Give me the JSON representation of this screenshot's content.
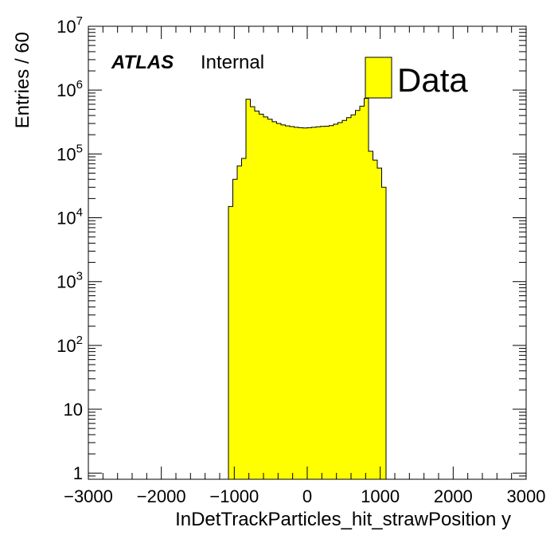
{
  "chart_data": {
    "type": "histogram",
    "title": "",
    "xlabel": "InDetTrackParticles_hit_strawPosition y",
    "ylabel": "Entries / 60",
    "xlim": [
      -3000,
      3000
    ],
    "ylim": [
      0.8,
      10000000
    ],
    "y_scale": "log",
    "bin_width": 60,
    "x_ticks": [
      -3000,
      -2000,
      -1000,
      0,
      1000,
      2000,
      3000
    ],
    "x_tick_labels": [
      "−3000",
      "−2000",
      "−1000",
      "0",
      "1000",
      "2000",
      "3000"
    ],
    "y_ticks": [
      {
        "value": 1,
        "base": "1",
        "exp": ""
      },
      {
        "value": 10,
        "base": "10",
        "exp": ""
      },
      {
        "value": 100,
        "base": "10",
        "exp": "2"
      },
      {
        "value": 1000,
        "base": "10",
        "exp": "3"
      },
      {
        "value": 10000,
        "base": "10",
        "exp": "4"
      },
      {
        "value": 100000,
        "base": "10",
        "exp": "5"
      },
      {
        "value": 1000000,
        "base": "10",
        "exp": "6"
      },
      {
        "value": 10000000,
        "base": "10",
        "exp": "7"
      }
    ],
    "series": [
      {
        "name": "Data",
        "fill_color": "#ffff00",
        "line_color": "#000000",
        "bins": [
          {
            "x_low": -1080,
            "x_high": -1020,
            "value": 15000
          },
          {
            "x_low": -1020,
            "x_high": -960,
            "value": 40000
          },
          {
            "x_low": -960,
            "x_high": -900,
            "value": 65000
          },
          {
            "x_low": -900,
            "x_high": -840,
            "value": 85000
          },
          {
            "x_low": -840,
            "x_high": -780,
            "value": 720000
          },
          {
            "x_low": -780,
            "x_high": -720,
            "value": 550000
          },
          {
            "x_low": -720,
            "x_high": -660,
            "value": 470000
          },
          {
            "x_low": -660,
            "x_high": -600,
            "value": 420000
          },
          {
            "x_low": -600,
            "x_high": -540,
            "value": 380000
          },
          {
            "x_low": -540,
            "x_high": -480,
            "value": 350000
          },
          {
            "x_low": -480,
            "x_high": -420,
            "value": 320000
          },
          {
            "x_low": -420,
            "x_high": -360,
            "value": 300000
          },
          {
            "x_low": -360,
            "x_high": -300,
            "value": 285000
          },
          {
            "x_low": -300,
            "x_high": -240,
            "value": 275000
          },
          {
            "x_low": -240,
            "x_high": -180,
            "value": 268000
          },
          {
            "x_low": -180,
            "x_high": -120,
            "value": 262000
          },
          {
            "x_low": -120,
            "x_high": -60,
            "value": 258000
          },
          {
            "x_low": -60,
            "x_high": 0,
            "value": 255000
          },
          {
            "x_low": 0,
            "x_high": 60,
            "value": 258000
          },
          {
            "x_low": 60,
            "x_high": 120,
            "value": 262000
          },
          {
            "x_low": 120,
            "x_high": 180,
            "value": 266000
          },
          {
            "x_low": 180,
            "x_high": 240,
            "value": 270000
          },
          {
            "x_low": 240,
            "x_high": 300,
            "value": 272000
          },
          {
            "x_low": 300,
            "x_high": 360,
            "value": 278000
          },
          {
            "x_low": 360,
            "x_high": 420,
            "value": 292000
          },
          {
            "x_low": 420,
            "x_high": 480,
            "value": 310000
          },
          {
            "x_low": 480,
            "x_high": 540,
            "value": 335000
          },
          {
            "x_low": 540,
            "x_high": 600,
            "value": 370000
          },
          {
            "x_low": 600,
            "x_high": 660,
            "value": 410000
          },
          {
            "x_low": 660,
            "x_high": 720,
            "value": 480000
          },
          {
            "x_low": 720,
            "x_high": 780,
            "value": 560000
          },
          {
            "x_low": 780,
            "x_high": 840,
            "value": 740000
          },
          {
            "x_low": 840,
            "x_high": 900,
            "value": 110000
          },
          {
            "x_low": 900,
            "x_high": 960,
            "value": 80000
          },
          {
            "x_low": 960,
            "x_high": 1020,
            "value": 60000
          },
          {
            "x_low": 1020,
            "x_high": 1080,
            "value": 30000
          }
        ]
      }
    ],
    "legend": {
      "position": "top-right",
      "label": "Data"
    },
    "annotation": {
      "bold": "ATLAS",
      "normal": "Internal"
    },
    "grid": false
  }
}
